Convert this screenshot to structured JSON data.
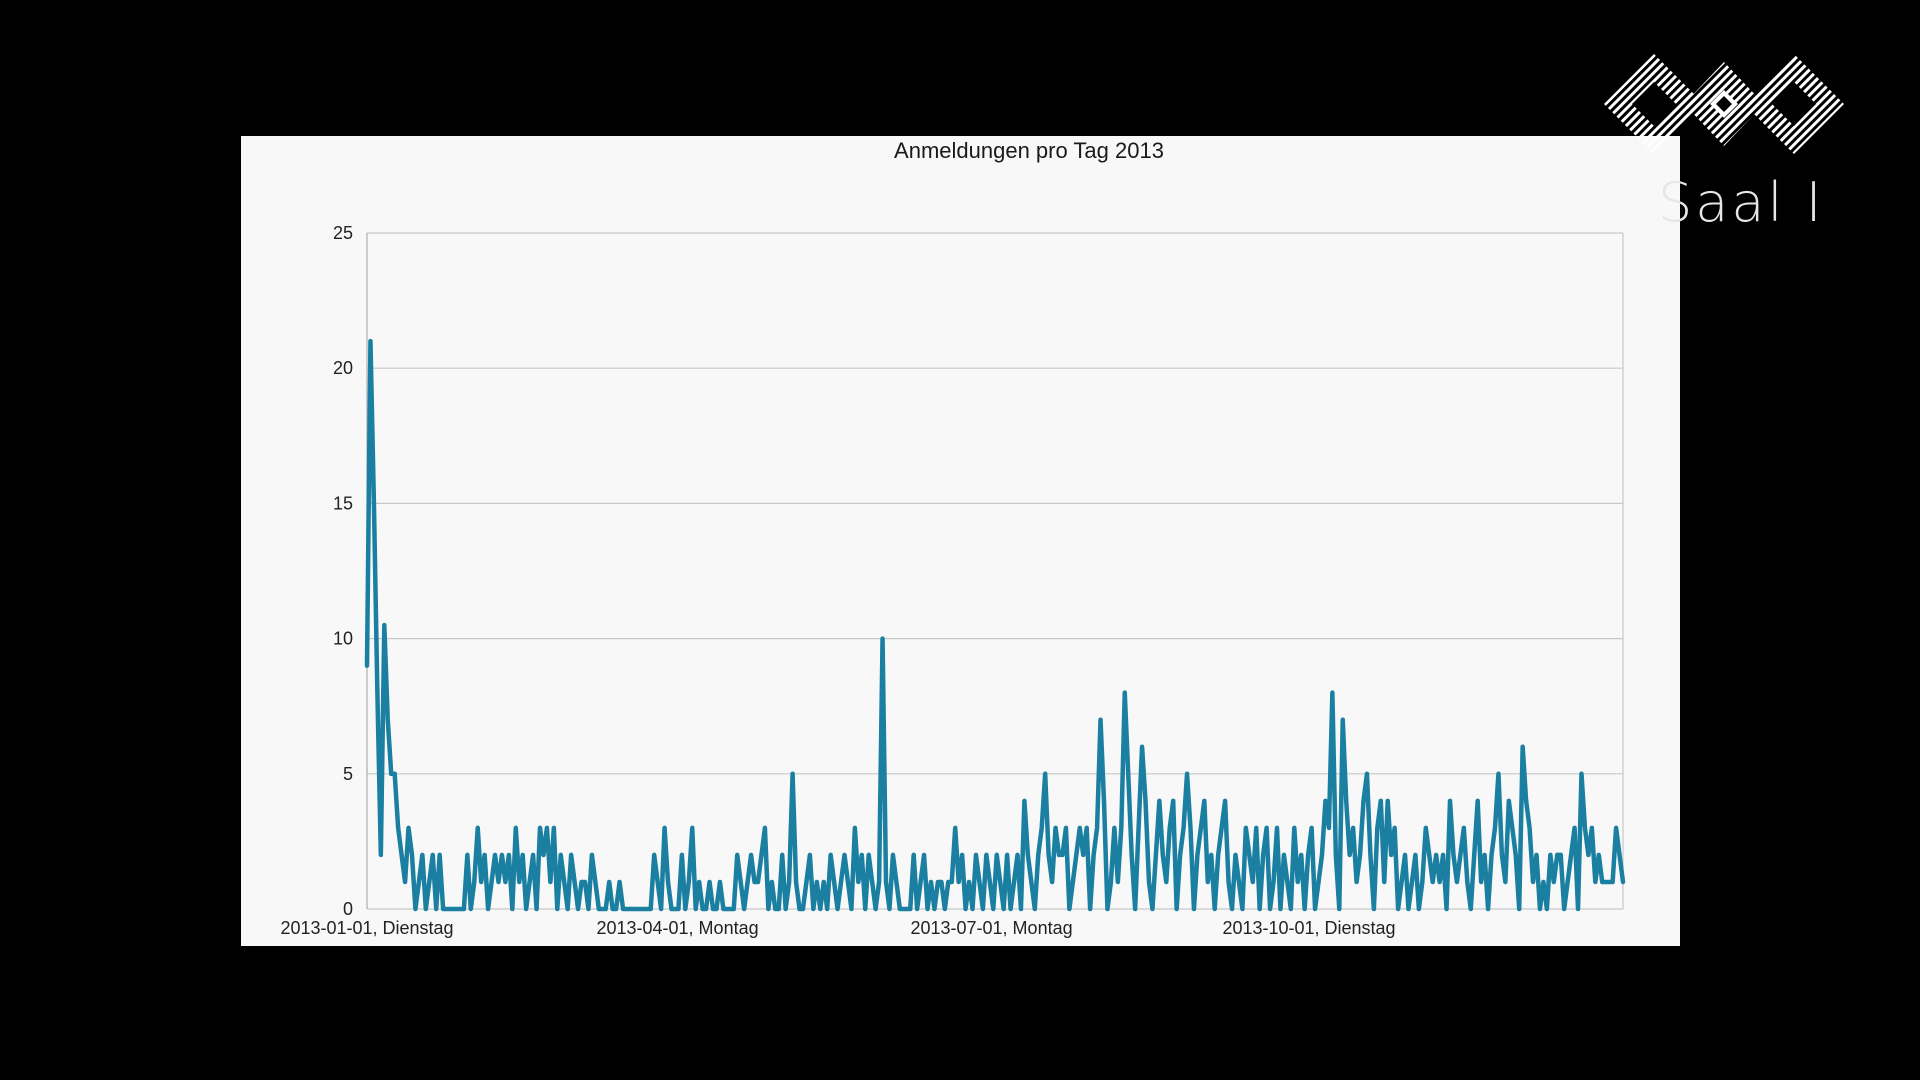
{
  "overlay": {
    "room_label": "Saal I",
    "logo_icon": "conference-logo-icon"
  },
  "chart_data": {
    "type": "line",
    "title": "Anmeldungen pro Tag 2013",
    "xlabel": "",
    "ylabel": "",
    "ylim": [
      0,
      25
    ],
    "yticks": [
      0,
      5,
      10,
      15,
      20,
      25
    ],
    "xlim": [
      1,
      365
    ],
    "xticks": [
      {
        "day": 1,
        "label": "2013-01-01, Dienstag"
      },
      {
        "day": 91,
        "label": "2013-04-01, Montag"
      },
      {
        "day": 182,
        "label": "2013-07-01, Montag"
      },
      {
        "day": 274,
        "label": "2013-10-01, Dienstag"
      }
    ],
    "grid": true,
    "legend": "none",
    "line_color": "#1a7fa0",
    "series": [
      {
        "values": [
          9,
          21,
          15,
          8,
          2,
          10.5,
          7,
          5,
          5,
          3,
          2,
          1,
          3,
          2,
          0,
          1,
          2,
          0,
          1,
          2,
          0,
          2,
          0,
          0,
          0,
          0,
          0,
          0,
          0,
          2,
          0,
          1,
          3,
          1,
          2,
          0,
          1,
          2,
          1,
          2,
          1,
          2,
          0,
          3,
          1,
          2,
          0,
          1,
          2,
          0,
          3,
          2,
          3,
          1,
          3,
          0,
          2,
          1,
          0,
          2,
          1,
          0,
          1,
          1,
          0,
          2,
          1,
          0,
          0,
          0,
          1,
          0,
          0,
          1,
          0,
          0,
          0,
          0,
          0,
          0,
          0,
          0,
          0,
          2,
          1,
          0,
          3,
          1,
          0,
          0,
          0,
          2,
          0,
          1,
          3,
          0,
          1,
          0,
          0,
          1,
          0,
          0,
          1,
          0,
          0,
          0,
          0,
          2,
          1,
          0,
          1,
          2,
          1,
          1,
          2,
          3,
          0,
          1,
          0,
          0,
          2,
          0,
          1,
          5,
          1,
          0,
          0,
          1,
          2,
          0,
          1,
          0,
          1,
          0,
          2,
          1,
          0,
          1,
          2,
          1,
          0,
          3,
          1,
          2,
          0,
          2,
          1,
          0,
          1,
          10,
          1,
          0,
          2,
          1,
          0,
          0,
          0,
          0,
          2,
          0,
          1,
          2,
          0,
          1,
          0,
          1,
          1,
          0,
          1,
          1,
          3,
          1,
          2,
          0,
          1,
          0,
          2,
          1,
          0,
          2,
          1,
          0,
          2,
          1,
          0,
          2,
          0,
          1,
          2,
          0,
          4,
          2,
          1,
          0,
          2,
          3,
          5,
          2,
          1,
          3,
          2,
          2,
          3,
          0,
          1,
          2,
          3,
          2,
          3,
          0,
          2,
          3,
          7,
          4,
          0,
          1,
          3,
          1,
          3,
          8,
          5,
          2,
          0,
          3,
          6,
          4,
          1,
          0,
          2,
          4,
          2,
          1,
          3,
          4,
          0,
          2,
          3,
          5,
          3,
          0,
          2,
          3,
          4,
          1,
          2,
          0,
          2,
          3,
          4,
          1,
          0,
          2,
          1,
          0,
          3,
          2,
          1,
          3,
          0,
          2,
          3,
          0,
          1,
          3,
          0,
          2,
          1,
          0,
          3,
          1,
          2,
          0,
          2,
          3,
          0,
          1,
          2,
          4,
          3,
          8,
          2,
          0,
          7,
          4,
          2,
          3,
          1,
          2,
          4,
          5,
          2,
          0,
          3,
          4,
          1,
          4,
          2,
          3,
          0,
          1,
          2,
          0,
          1,
          2,
          0,
          1,
          3,
          2,
          1,
          2,
          1,
          2,
          0,
          4,
          2,
          1,
          2,
          3,
          1,
          0,
          2,
          4,
          1,
          2,
          0,
          2,
          3,
          5,
          2,
          1,
          4,
          3,
          2,
          0,
          6,
          4,
          3,
          1,
          2,
          0,
          1,
          0,
          2,
          1,
          2,
          2,
          0,
          1,
          2,
          3,
          0,
          5,
          3,
          2,
          3,
          1,
          2,
          1,
          1,
          1,
          1,
          3,
          2,
          1
        ]
      }
    ]
  }
}
